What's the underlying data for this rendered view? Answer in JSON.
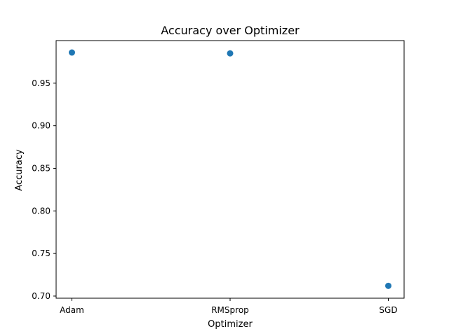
{
  "chart_data": {
    "type": "scatter",
    "title": "Accuracy over Optimizer",
    "xlabel": "Optimizer",
    "ylabel": "Accuracy",
    "categories": [
      "Adam",
      "RMSprop",
      "SGD"
    ],
    "values": [
      0.986,
      0.985,
      0.712
    ],
    "ylim": [
      0.6975,
      1.0
    ],
    "yticks": [
      "0.70",
      "0.75",
      "0.80",
      "0.85",
      "0.90",
      "0.95"
    ],
    "grid": false,
    "marker_color": "#1f77b4"
  }
}
